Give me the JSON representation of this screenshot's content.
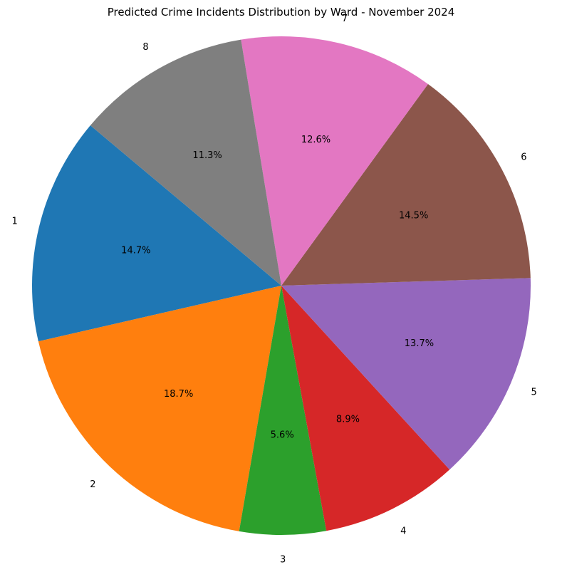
{
  "chart_data": {
    "type": "pie",
    "title": "Predicted Crime Incidents Distribution by Ward - November 2024",
    "categories": [
      "1",
      "2",
      "3",
      "4",
      "5",
      "6",
      "7",
      "8"
    ],
    "values": [
      14.7,
      18.7,
      5.6,
      8.9,
      13.7,
      14.5,
      12.6,
      11.3
    ],
    "value_labels": [
      "14.7%",
      "18.7%",
      "5.6%",
      "8.9%",
      "13.7%",
      "14.5%",
      "12.6%",
      "11.3%"
    ],
    "colors": [
      "#1f77b4",
      "#ff7f0e",
      "#2ca02c",
      "#d62728",
      "#9467bd",
      "#8c564b",
      "#e377c2",
      "#7f7f7f"
    ],
    "start_angle_deg": 140,
    "direction": "counterclockwise"
  }
}
